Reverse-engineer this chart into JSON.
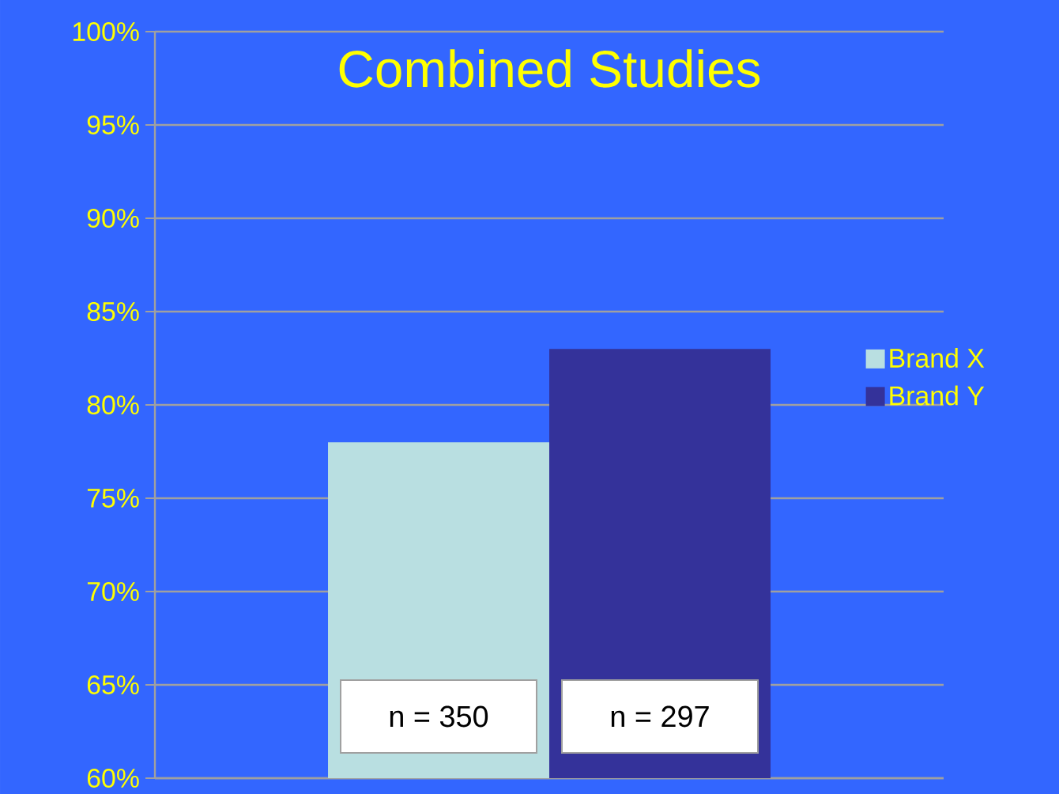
{
  "chart_data": {
    "type": "bar",
    "title": "Combined Studies",
    "categories": [
      null
    ],
    "series": [
      {
        "name": "Brand X",
        "color": "#b9dfe1",
        "values": [
          78
        ]
      },
      {
        "name": "Brand Y",
        "color": "#34329a",
        "values": [
          83
        ]
      }
    ],
    "ylim": [
      60,
      100
    ],
    "yticks": [
      {
        "value": 60,
        "label": "60%"
      },
      {
        "value": 65,
        "label": "65%"
      },
      {
        "value": 70,
        "label": "70%"
      },
      {
        "value": 75,
        "label": "75%"
      },
      {
        "value": 80,
        "label": "80%"
      },
      {
        "value": 85,
        "label": "85%"
      },
      {
        "value": 90,
        "label": "90%"
      },
      {
        "value": 95,
        "label": "95%"
      },
      {
        "value": 100,
        "label": "100%"
      }
    ],
    "grid": "y",
    "legend": "right",
    "annotations": [
      "n = 350",
      "n = 297"
    ]
  }
}
